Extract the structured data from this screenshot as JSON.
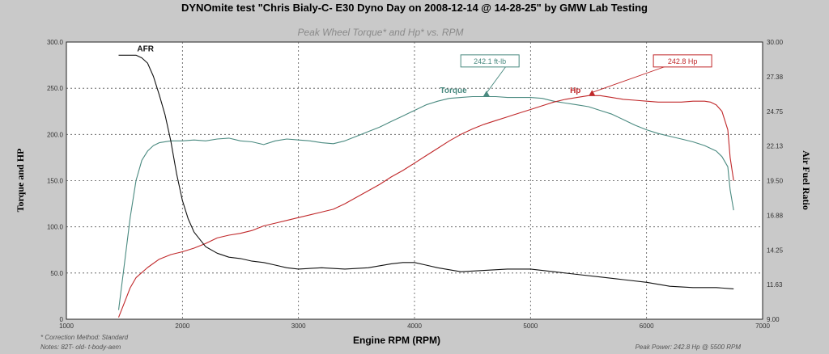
{
  "header": {
    "title": "DYNOmite test \"Chris Bialy-C- E30 Dyno Day on 2008-12-14 @ 14-28-25\" by GMW Lab Testing"
  },
  "chart_data": {
    "type": "line",
    "title": "Peak Wheel Torque* and Hp* vs. RPM",
    "xlabel": "Engine RPM (RPM)",
    "ylabel": "Torque and HP",
    "y2label": "Air Fuel Ratio",
    "xlim": [
      1000,
      7000
    ],
    "ylim": [
      0,
      300
    ],
    "y2lim": [
      9.0,
      30.0
    ],
    "x_ticks": [
      "1000",
      "2000",
      "3000",
      "4000",
      "5000",
      "6000",
      "7000"
    ],
    "y_ticks": [
      "0",
      "50.0",
      "100.0",
      "150.0",
      "200.0",
      "250.0",
      "300.0"
    ],
    "y2_ticks": [
      "9.00",
      "11.63",
      "14.25",
      "16.88",
      "19.50",
      "22.13",
      "24.75",
      "27.38",
      "30.00"
    ],
    "grid": true,
    "colors": {
      "afr": "#111111",
      "torque": "#4a8a80",
      "hp": "#c0282a",
      "background": "#ffffff",
      "grid": "#555555"
    },
    "series": [
      {
        "name": "Torque",
        "axis": "left",
        "x": [
          1450,
          1500,
          1550,
          1600,
          1650,
          1700,
          1750,
          1800,
          1900,
          2000,
          2100,
          2200,
          2300,
          2400,
          2500,
          2600,
          2700,
          2800,
          2900,
          3000,
          3100,
          3200,
          3300,
          3400,
          3500,
          3600,
          3700,
          3800,
          3900,
          4000,
          4100,
          4200,
          4300,
          4400,
          4500,
          4600,
          4700,
          4800,
          4900,
          5000,
          5100,
          5200,
          5300,
          5400,
          5500,
          5600,
          5700,
          5800,
          5900,
          6000,
          6100,
          6200,
          6300,
          6400,
          6500,
          6600,
          6650,
          6700,
          6720,
          6750
        ],
        "values": [
          10,
          60,
          110,
          150,
          172,
          182,
          188,
          191,
          193,
          193,
          194,
          193,
          195,
          196,
          193,
          192,
          189,
          193,
          195,
          194,
          193,
          191,
          190,
          193,
          198,
          203,
          208,
          214,
          220,
          226,
          232,
          236,
          239,
          240,
          241,
          241,
          241,
          240,
          240,
          240,
          239,
          236,
          234,
          232,
          230,
          226,
          222,
          216,
          210,
          205,
          201,
          198,
          195,
          192,
          188,
          182,
          176,
          165,
          140,
          118
        ]
      },
      {
        "name": "Hp",
        "axis": "left",
        "x": [
          1450,
          1500,
          1550,
          1600,
          1700,
          1800,
          1900,
          2000,
          2100,
          2200,
          2300,
          2400,
          2500,
          2600,
          2700,
          2800,
          2900,
          3000,
          3100,
          3200,
          3300,
          3400,
          3500,
          3600,
          3700,
          3800,
          3900,
          4000,
          4100,
          4200,
          4300,
          4400,
          4500,
          4600,
          4700,
          4800,
          4900,
          5000,
          5100,
          5200,
          5300,
          5400,
          5500,
          5600,
          5700,
          5800,
          5900,
          6000,
          6100,
          6200,
          6300,
          6400,
          6500,
          6550,
          6600,
          6650,
          6700,
          6720,
          6750
        ],
        "values": [
          2,
          18,
          34,
          45,
          56,
          65,
          70,
          73,
          77,
          82,
          88,
          91,
          93,
          96,
          101,
          104,
          107,
          110,
          113,
          116,
          119,
          125,
          132,
          139,
          146,
          154,
          161,
          169,
          177,
          185,
          193,
          200,
          206,
          211,
          215,
          219,
          223,
          227,
          231,
          235,
          238,
          240,
          242,
          242,
          240,
          238,
          237,
          236,
          235,
          235,
          235,
          236,
          236,
          235,
          232,
          225,
          205,
          175,
          150
        ]
      },
      {
        "name": "AFR",
        "axis": "right",
        "x": [
          1450,
          1600,
          1650,
          1700,
          1750,
          1800,
          1850,
          1900,
          1950,
          2000,
          2050,
          2100,
          2200,
          2300,
          2400,
          2500,
          2600,
          2700,
          2800,
          2900,
          3000,
          3200,
          3400,
          3600,
          3800,
          3900,
          4000,
          4100,
          4200,
          4400,
          4600,
          4800,
          5000,
          5200,
          5400,
          5600,
          5800,
          6000,
          6200,
          6400,
          6600,
          6750
        ],
        "values": [
          29.0,
          29.0,
          28.8,
          28.4,
          27.4,
          26.0,
          24.5,
          22.5,
          20.0,
          18.0,
          16.6,
          15.6,
          14.5,
          14.0,
          13.7,
          13.6,
          13.4,
          13.3,
          13.1,
          12.9,
          12.8,
          12.9,
          12.8,
          12.9,
          13.2,
          13.3,
          13.3,
          13.1,
          12.9,
          12.6,
          12.7,
          12.8,
          12.8,
          12.6,
          12.4,
          12.2,
          12.0,
          11.8,
          11.5,
          11.4,
          11.4,
          11.3
        ]
      }
    ],
    "annotations": [
      {
        "label": "AFR",
        "series": "AFR"
      },
      {
        "label": "Torque",
        "series": "Torque"
      },
      {
        "label": "Hp",
        "series": "Hp"
      },
      {
        "text": "242.1 ft-lb",
        "series": "Torque",
        "peak_rpm": 4620,
        "peak_value": 242.1
      },
      {
        "text": "242.8 Hp",
        "series": "Hp",
        "peak_rpm": 5530,
        "peak_value": 242.8
      }
    ]
  },
  "footer": {
    "correction": "* Correction Method: Standard",
    "notes": "Notes: 82T- old- t-body-aem",
    "peak_power": "Peak Power: 242.8 Hp @ 5500 RPM"
  }
}
